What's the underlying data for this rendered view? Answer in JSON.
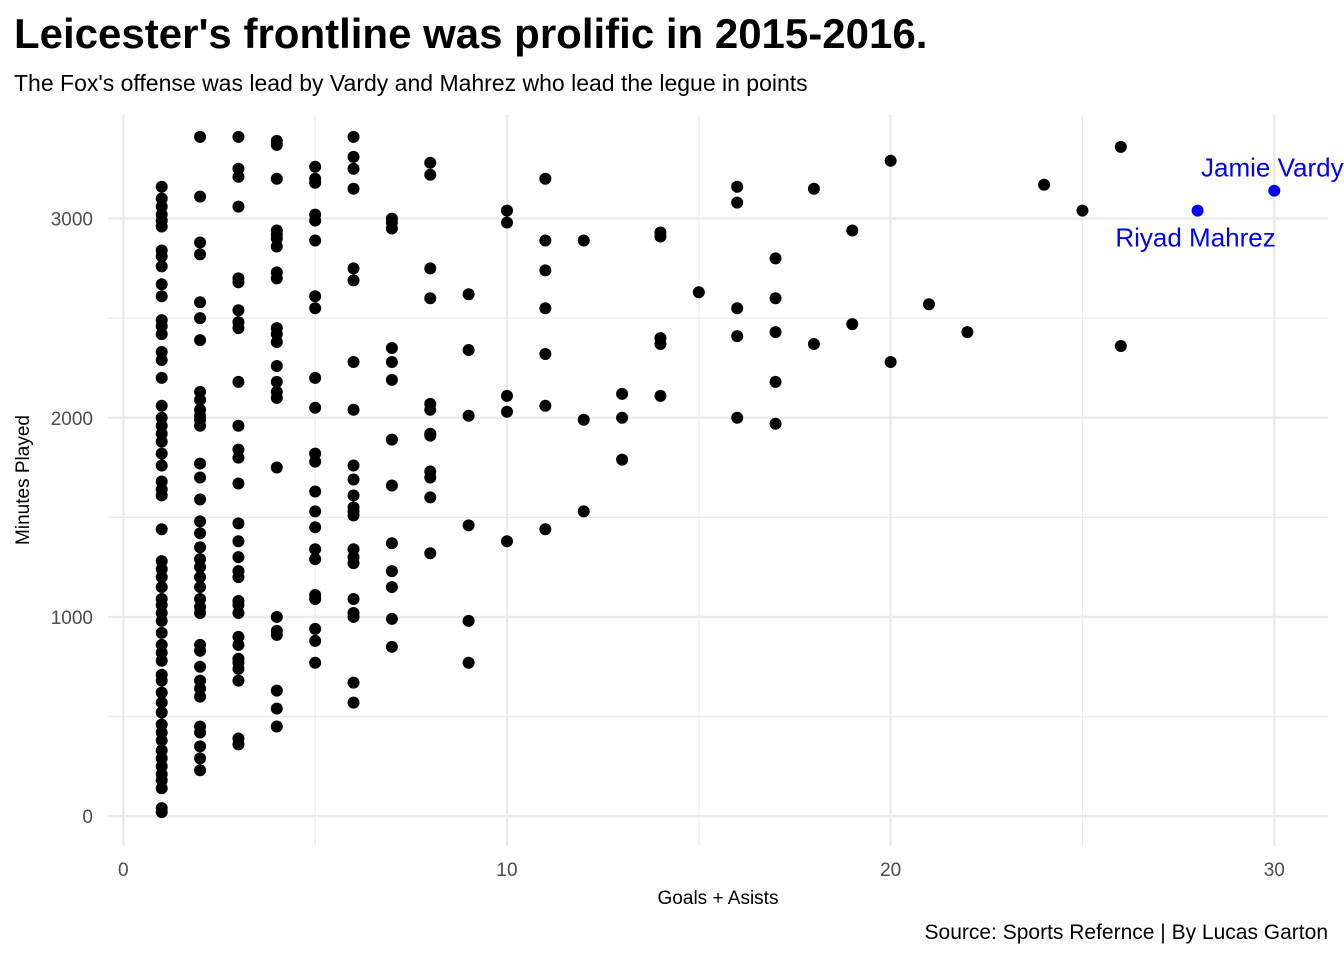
{
  "title": "Leicester's frontline was prolific in 2015-2016.",
  "subtitle": "The Fox's offense was lead by Vardy and Mahrez who lead the legue in points",
  "caption": "Source: Sports Refernce | By Lucas Garton",
  "colors": {
    "point": "#000000",
    "highlight": "#0000ff",
    "grid": "#ebebeb",
    "tick": "#4d4d4d"
  },
  "chart_data": {
    "type": "scatter",
    "xlabel": "Goals + Asists",
    "ylabel": "Minutes Played",
    "xlim": [
      -0.4,
      31.4
    ],
    "ylim": [
      -150,
      3520
    ],
    "xticks": [
      0,
      10,
      20,
      30
    ],
    "yticks": [
      0,
      1000,
      2000,
      3000
    ],
    "grid": true,
    "series": [
      {
        "points": [
          [
            1,
            3160
          ],
          [
            1,
            3100
          ],
          [
            1,
            3060
          ],
          [
            1,
            3020
          ],
          [
            1,
            2990
          ],
          [
            1,
            2960
          ],
          [
            1,
            2840
          ],
          [
            1,
            2810
          ],
          [
            1,
            2760
          ],
          [
            1,
            2670
          ],
          [
            1,
            2610
          ],
          [
            1,
            2490
          ],
          [
            1,
            2460
          ],
          [
            1,
            2420
          ],
          [
            1,
            2330
          ],
          [
            1,
            2290
          ],
          [
            1,
            2200
          ],
          [
            1,
            2060
          ],
          [
            1,
            2000
          ],
          [
            1,
            1960
          ],
          [
            1,
            1920
          ],
          [
            1,
            1880
          ],
          [
            1,
            1820
          ],
          [
            1,
            1760
          ],
          [
            1,
            1680
          ],
          [
            1,
            1640
          ],
          [
            1,
            1610
          ],
          [
            1,
            1440
          ],
          [
            1,
            1280
          ],
          [
            1,
            1240
          ],
          [
            1,
            1200
          ],
          [
            1,
            1150
          ],
          [
            1,
            1090
          ],
          [
            1,
            1060
          ],
          [
            1,
            1020
          ],
          [
            1,
            980
          ],
          [
            1,
            920
          ],
          [
            1,
            860
          ],
          [
            1,
            820
          ],
          [
            1,
            780
          ],
          [
            1,
            710
          ],
          [
            1,
            680
          ],
          [
            1,
            620
          ],
          [
            1,
            570
          ],
          [
            1,
            520
          ],
          [
            1,
            460
          ],
          [
            1,
            420
          ],
          [
            1,
            380
          ],
          [
            1,
            330
          ],
          [
            1,
            290
          ],
          [
            1,
            250
          ],
          [
            1,
            210
          ],
          [
            1,
            180
          ],
          [
            1,
            140
          ],
          [
            1,
            40
          ],
          [
            1,
            20
          ],
          [
            2,
            3410
          ],
          [
            2,
            3110
          ],
          [
            2,
            2880
          ],
          [
            2,
            2820
          ],
          [
            2,
            2580
          ],
          [
            2,
            2500
          ],
          [
            2,
            2390
          ],
          [
            2,
            2130
          ],
          [
            2,
            2090
          ],
          [
            2,
            2040
          ],
          [
            2,
            2010
          ],
          [
            2,
            1990
          ],
          [
            2,
            1960
          ],
          [
            2,
            1770
          ],
          [
            2,
            1700
          ],
          [
            2,
            1590
          ],
          [
            2,
            1480
          ],
          [
            2,
            1420
          ],
          [
            2,
            1350
          ],
          [
            2,
            1290
          ],
          [
            2,
            1250
          ],
          [
            2,
            1200
          ],
          [
            2,
            1150
          ],
          [
            2,
            1090
          ],
          [
            2,
            1050
          ],
          [
            2,
            1020
          ],
          [
            2,
            860
          ],
          [
            2,
            830
          ],
          [
            2,
            750
          ],
          [
            2,
            680
          ],
          [
            2,
            640
          ],
          [
            2,
            600
          ],
          [
            2,
            450
          ],
          [
            2,
            420
          ],
          [
            2,
            350
          ],
          [
            2,
            290
          ],
          [
            2,
            230
          ],
          [
            3,
            3410
          ],
          [
            3,
            3250
          ],
          [
            3,
            3210
          ],
          [
            3,
            3060
          ],
          [
            3,
            2700
          ],
          [
            3,
            2680
          ],
          [
            3,
            2540
          ],
          [
            3,
            2480
          ],
          [
            3,
            2450
          ],
          [
            3,
            2180
          ],
          [
            3,
            1960
          ],
          [
            3,
            1840
          ],
          [
            3,
            1800
          ],
          [
            3,
            1670
          ],
          [
            3,
            1470
          ],
          [
            3,
            1380
          ],
          [
            3,
            1300
          ],
          [
            3,
            1230
          ],
          [
            3,
            1200
          ],
          [
            3,
            1080
          ],
          [
            3,
            1060
          ],
          [
            3,
            1020
          ],
          [
            3,
            900
          ],
          [
            3,
            860
          ],
          [
            3,
            790
          ],
          [
            3,
            770
          ],
          [
            3,
            740
          ],
          [
            3,
            680
          ],
          [
            3,
            390
          ],
          [
            3,
            360
          ],
          [
            4,
            3390
          ],
          [
            4,
            3370
          ],
          [
            4,
            3200
          ],
          [
            4,
            2940
          ],
          [
            4,
            2920
          ],
          [
            4,
            2900
          ],
          [
            4,
            2860
          ],
          [
            4,
            2730
          ],
          [
            4,
            2700
          ],
          [
            4,
            2450
          ],
          [
            4,
            2420
          ],
          [
            4,
            2380
          ],
          [
            4,
            2260
          ],
          [
            4,
            2180
          ],
          [
            4,
            2130
          ],
          [
            4,
            2100
          ],
          [
            4,
            1750
          ],
          [
            4,
            1000
          ],
          [
            4,
            930
          ],
          [
            4,
            910
          ],
          [
            4,
            630
          ],
          [
            4,
            540
          ],
          [
            4,
            450
          ],
          [
            5,
            3260
          ],
          [
            5,
            3200
          ],
          [
            5,
            3180
          ],
          [
            5,
            3020
          ],
          [
            5,
            2990
          ],
          [
            5,
            2890
          ],
          [
            5,
            2610
          ],
          [
            5,
            2550
          ],
          [
            5,
            2200
          ],
          [
            5,
            2050
          ],
          [
            5,
            1820
          ],
          [
            5,
            1780
          ],
          [
            5,
            1630
          ],
          [
            5,
            1530
          ],
          [
            5,
            1450
          ],
          [
            5,
            1340
          ],
          [
            5,
            1290
          ],
          [
            5,
            1110
          ],
          [
            5,
            1090
          ],
          [
            5,
            940
          ],
          [
            5,
            880
          ],
          [
            5,
            770
          ],
          [
            6,
            3410
          ],
          [
            6,
            3310
          ],
          [
            6,
            3250
          ],
          [
            6,
            3150
          ],
          [
            6,
            2750
          ],
          [
            6,
            2690
          ],
          [
            6,
            2280
          ],
          [
            6,
            2040
          ],
          [
            6,
            1760
          ],
          [
            6,
            1690
          ],
          [
            6,
            1610
          ],
          [
            6,
            1550
          ],
          [
            6,
            1530
          ],
          [
            6,
            1510
          ],
          [
            6,
            1340
          ],
          [
            6,
            1300
          ],
          [
            6,
            1270
          ],
          [
            6,
            1090
          ],
          [
            6,
            1020
          ],
          [
            6,
            1000
          ],
          [
            6,
            670
          ],
          [
            6,
            570
          ],
          [
            7,
            3000
          ],
          [
            7,
            2980
          ],
          [
            7,
            2950
          ],
          [
            7,
            2350
          ],
          [
            7,
            2280
          ],
          [
            7,
            2190
          ],
          [
            7,
            1890
          ],
          [
            7,
            1660
          ],
          [
            7,
            1370
          ],
          [
            7,
            1230
          ],
          [
            7,
            1150
          ],
          [
            7,
            990
          ],
          [
            7,
            850
          ],
          [
            8,
            3280
          ],
          [
            8,
            3220
          ],
          [
            8,
            2750
          ],
          [
            8,
            2600
          ],
          [
            8,
            2070
          ],
          [
            8,
            2040
          ],
          [
            8,
            1920
          ],
          [
            8,
            1910
          ],
          [
            8,
            1730
          ],
          [
            8,
            1700
          ],
          [
            8,
            1600
          ],
          [
            8,
            1320
          ],
          [
            9,
            2620
          ],
          [
            9,
            2340
          ],
          [
            9,
            2010
          ],
          [
            9,
            1460
          ],
          [
            9,
            980
          ],
          [
            9,
            770
          ],
          [
            10,
            3040
          ],
          [
            10,
            2980
          ],
          [
            10,
            2110
          ],
          [
            10,
            2030
          ],
          [
            10,
            1380
          ],
          [
            11,
            3200
          ],
          [
            11,
            2890
          ],
          [
            11,
            2740
          ],
          [
            11,
            2550
          ],
          [
            11,
            2320
          ],
          [
            11,
            2060
          ],
          [
            11,
            1440
          ],
          [
            12,
            2890
          ],
          [
            12,
            1990
          ],
          [
            12,
            1530
          ],
          [
            13,
            2120
          ],
          [
            13,
            2000
          ],
          [
            13,
            1790
          ],
          [
            14,
            2930
          ],
          [
            14,
            2910
          ],
          [
            14,
            2400
          ],
          [
            14,
            2370
          ],
          [
            14,
            2110
          ],
          [
            15,
            2630
          ],
          [
            16,
            3160
          ],
          [
            16,
            3080
          ],
          [
            16,
            2550
          ],
          [
            16,
            2410
          ],
          [
            16,
            2000
          ],
          [
            17,
            2800
          ],
          [
            17,
            2600
          ],
          [
            17,
            2430
          ],
          [
            17,
            2180
          ],
          [
            17,
            1970
          ],
          [
            18,
            3150
          ],
          [
            18,
            2370
          ],
          [
            19,
            2940
          ],
          [
            19,
            2470
          ],
          [
            20,
            3290
          ],
          [
            20,
            2280
          ],
          [
            21,
            2570
          ],
          [
            22,
            2430
          ],
          [
            24,
            3170
          ],
          [
            25,
            3040
          ],
          [
            26,
            3360
          ],
          [
            26,
            2360
          ]
        ]
      },
      {
        "points": [
          [
            30,
            3140
          ],
          [
            28,
            3040
          ]
        ]
      }
    ],
    "annotations": [
      {
        "text": "Jamie Vardy",
        "x": 30,
        "y": 3140,
        "position": "above"
      },
      {
        "text": "Riyad Mahrez",
        "x": 28,
        "y": 3040,
        "position": "below"
      }
    ]
  }
}
